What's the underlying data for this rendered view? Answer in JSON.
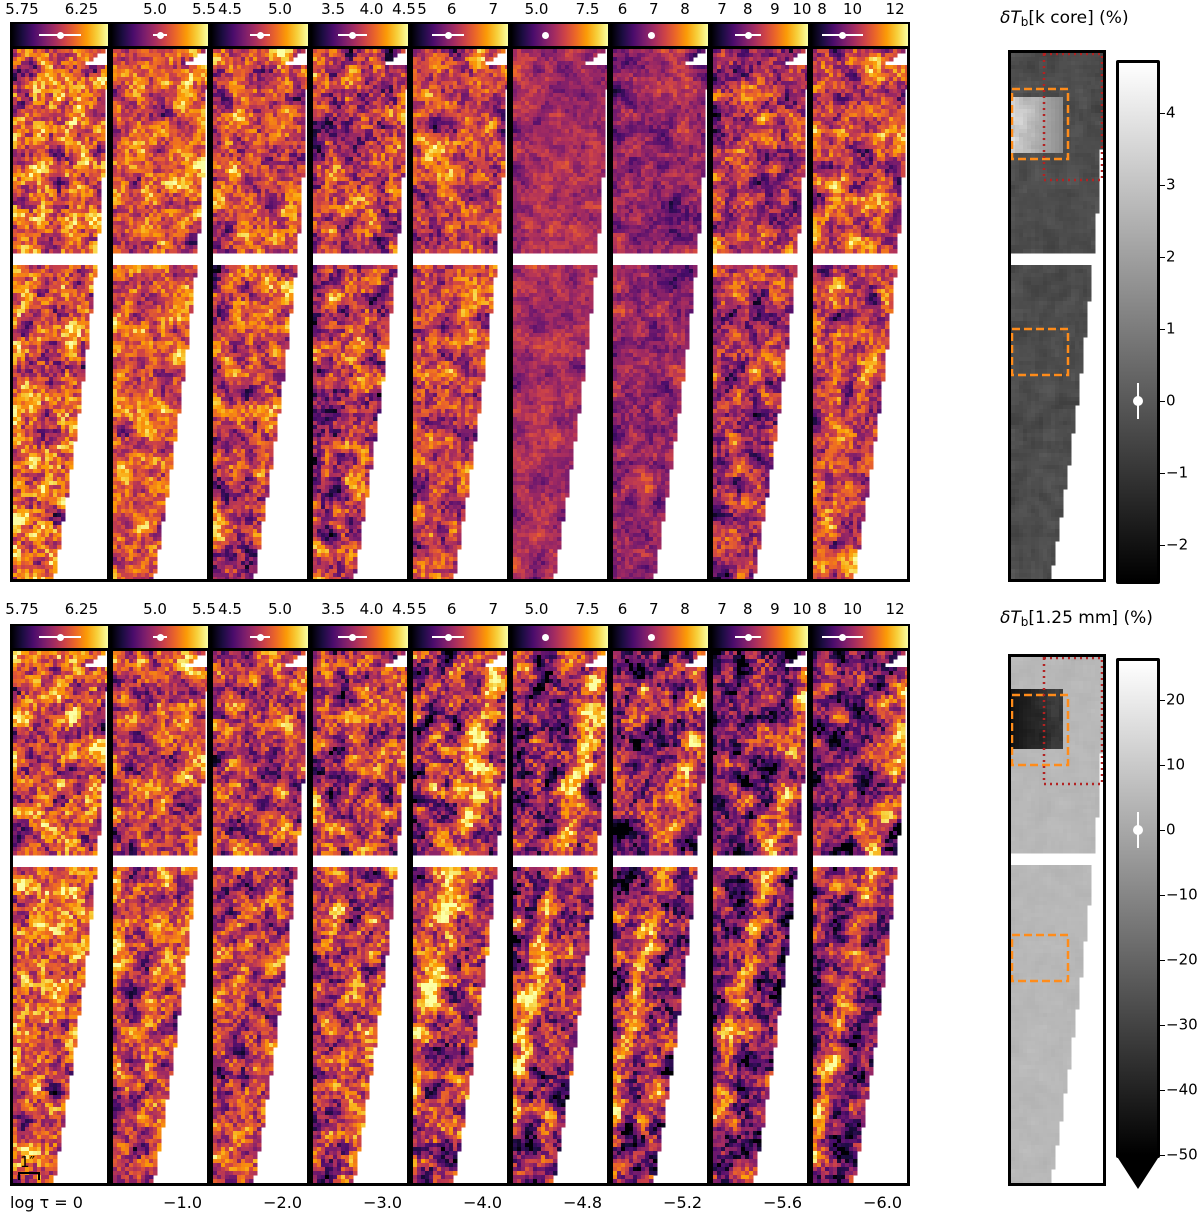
{
  "rows": [
    {
      "title": "δTₐ[k core] (%)",
      "title_main": "δT",
      "title_sub": "b",
      "title_rest": "[k core] (%)",
      "colorbar_ticks": [
        "−2",
        "−1",
        "0",
        "1",
        "2",
        "3",
        "4"
      ],
      "colorbar_values": [
        -2,
        -1,
        0,
        1,
        2,
        3,
        4
      ],
      "colorbar_range": [
        -2.5,
        4.7
      ],
      "colorbar_marker": 0,
      "colorbar_extend": false
    },
    {
      "title": "δTₐ[1.25 mm] (%)",
      "title_main": "δT",
      "title_sub": "b",
      "title_rest": "[1.25 mm] (%)",
      "colorbar_ticks": [
        "−50",
        "−40",
        "−30",
        "−20",
        "−10",
        "0",
        "10",
        "20"
      ],
      "colorbar_values": [
        -50,
        -40,
        -30,
        -20,
        -10,
        0,
        10,
        20
      ],
      "colorbar_range": [
        -50,
        26
      ],
      "colorbar_marker": 0,
      "colorbar_extend": true
    }
  ],
  "columns": [
    {
      "log_tau": "log τ = 0",
      "ticks": [
        "5.75",
        "6.25"
      ],
      "tick_values": [
        5.75,
        6.25
      ],
      "range": [
        5.75,
        6.45
      ],
      "marker": [
        6.1,
        5.95,
        6.25
      ]
    },
    {
      "log_tau": "−1.0",
      "ticks": [
        "5.0",
        "5.5"
      ],
      "tick_values": [
        5.0,
        5.5
      ],
      "range": [
        4.55,
        5.55
      ],
      "marker": [
        5.05,
        4.98,
        5.12
      ]
    },
    {
      "log_tau": "−2.0",
      "ticks": [
        "4.5",
        "5.0"
      ],
      "tick_values": [
        4.5,
        5.0
      ],
      "range": [
        4.3,
        5.3
      ],
      "marker": [
        4.8,
        4.7,
        4.9
      ]
    },
    {
      "log_tau": "−3.0",
      "ticks": [
        "3.5",
        "4.0",
        "4.5"
      ],
      "tick_values": [
        3.5,
        4.0,
        4.5
      ],
      "range": [
        3.2,
        4.5
      ],
      "marker": [
        3.75,
        3.55,
        3.95
      ]
    },
    {
      "log_tau": "−4.0",
      "ticks": [
        "5",
        "6",
        "7"
      ],
      "tick_values": [
        5,
        6,
        7
      ],
      "range": [
        5,
        7.4
      ],
      "marker": [
        5.9,
        5.5,
        6.3
      ]
    },
    {
      "log_tau": "−4.8",
      "ticks": [
        "5.0",
        "7.5"
      ],
      "tick_values": [
        5.0,
        7.5
      ],
      "range": [
        3.7,
        8.6
      ],
      "marker": [
        5.4,
        5.3,
        5.5
      ]
    },
    {
      "log_tau": "−5.2",
      "ticks": [
        "6",
        "7",
        "8"
      ],
      "tick_values": [
        6,
        7,
        8
      ],
      "range": [
        5.6,
        8.8
      ],
      "marker": [
        6.9,
        6.8,
        7.0
      ]
    },
    {
      "log_tau": "−5.6",
      "ticks": [
        "7",
        "8",
        "9",
        "10"
      ],
      "tick_values": [
        7,
        8,
        9,
        10
      ],
      "range": [
        6.6,
        10.3
      ],
      "marker": [
        8.0,
        7.5,
        8.5
      ]
    },
    {
      "log_tau": "−6.0",
      "ticks": [
        "8",
        "10",
        "12"
      ],
      "tick_values": [
        8,
        10,
        12
      ],
      "range": [
        8,
        12.7
      ],
      "marker": [
        9.5,
        8.5,
        10.5
      ]
    }
  ],
  "scale_bar": "1″",
  "colors": {
    "inferno": [
      "#000004",
      "#1b0c41",
      "#4a0c6b",
      "#781c6d",
      "#a52c60",
      "#cf4446",
      "#ed6925",
      "#fb9b06",
      "#f7d13d",
      "#fcffa4"
    ],
    "roi_box": "#ff8c1a",
    "roi_dotted": "#b22222"
  }
}
